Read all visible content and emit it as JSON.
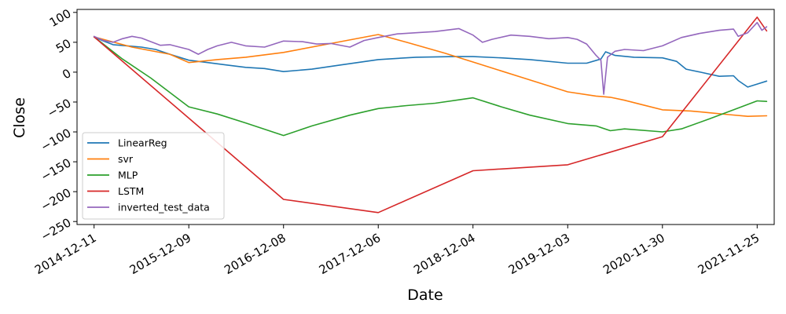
{
  "chart_data": {
    "type": "line",
    "title": "",
    "xlabel": "Date",
    "ylabel": "Close",
    "x_ticks": [
      "2014-12-11",
      "2015-12-09",
      "2016-12-08",
      "2017-12-06",
      "2018-12-04",
      "2019-12-03",
      "2020-11-30",
      "2021-11-25"
    ],
    "y_ticks": [
      100,
      50,
      0,
      -50,
      -100,
      -150,
      -200,
      -250
    ],
    "xlim": [
      -0.18,
      7.18
    ],
    "ylim": [
      -255,
      105
    ],
    "grid": false,
    "legend_position": "lower left",
    "series": [
      {
        "name": "LinearReg",
        "color": "#1f77b4",
        "points": [
          [
            0,
            59
          ],
          [
            0.1,
            52
          ],
          [
            0.2,
            46
          ],
          [
            0.35,
            44
          ],
          [
            0.5,
            42
          ],
          [
            0.65,
            38
          ],
          [
            0.8,
            30
          ],
          [
            1.0,
            20
          ],
          [
            1.2,
            16
          ],
          [
            1.4,
            12
          ],
          [
            1.6,
            8
          ],
          [
            1.8,
            6
          ],
          [
            2.0,
            1
          ],
          [
            2.3,
            5
          ],
          [
            2.6,
            12
          ],
          [
            3.0,
            21
          ],
          [
            3.4,
            25
          ],
          [
            3.8,
            26
          ],
          [
            4.0,
            26
          ],
          [
            4.3,
            24
          ],
          [
            4.6,
            21
          ],
          [
            5.0,
            15
          ],
          [
            5.2,
            15
          ],
          [
            5.35,
            22
          ],
          [
            5.4,
            34
          ],
          [
            5.5,
            28
          ],
          [
            5.7,
            25
          ],
          [
            6.0,
            24
          ],
          [
            6.15,
            18
          ],
          [
            6.25,
            5
          ],
          [
            6.4,
            0
          ],
          [
            6.6,
            -7
          ],
          [
            6.75,
            -6
          ],
          [
            6.8,
            -14
          ],
          [
            6.9,
            -25
          ],
          [
            7.0,
            -20
          ],
          [
            7.1,
            -15
          ]
        ]
      },
      {
        "name": "svr",
        "color": "#ff7f0e",
        "points": [
          [
            0,
            59
          ],
          [
            0.4,
            42
          ],
          [
            0.8,
            30
          ],
          [
            1.0,
            16
          ],
          [
            1.3,
            21
          ],
          [
            1.6,
            25
          ],
          [
            2.0,
            33
          ],
          [
            2.5,
            48
          ],
          [
            3.0,
            63
          ],
          [
            3.3,
            50
          ],
          [
            3.7,
            32
          ],
          [
            4.0,
            17
          ],
          [
            4.5,
            -8
          ],
          [
            5.0,
            -33
          ],
          [
            5.3,
            -40
          ],
          [
            5.45,
            -42
          ],
          [
            5.6,
            -47
          ],
          [
            5.8,
            -55
          ],
          [
            6.0,
            -63
          ],
          [
            6.3,
            -65
          ],
          [
            6.5,
            -68
          ],
          [
            6.7,
            -71
          ],
          [
            6.9,
            -74
          ],
          [
            7.1,
            -73
          ]
        ]
      },
      {
        "name": "MLP",
        "color": "#2ca02c",
        "points": [
          [
            0,
            59
          ],
          [
            0.3,
            22
          ],
          [
            0.6,
            -10
          ],
          [
            0.85,
            -40
          ],
          [
            1.0,
            -58
          ],
          [
            1.3,
            -70
          ],
          [
            1.6,
            -85
          ],
          [
            2.0,
            -106
          ],
          [
            2.3,
            -90
          ],
          [
            2.7,
            -72
          ],
          [
            3.0,
            -61
          ],
          [
            3.3,
            -56
          ],
          [
            3.6,
            -52
          ],
          [
            4.0,
            -43
          ],
          [
            4.3,
            -58
          ],
          [
            4.6,
            -72
          ],
          [
            5.0,
            -86
          ],
          [
            5.3,
            -90
          ],
          [
            5.45,
            -98
          ],
          [
            5.6,
            -95
          ],
          [
            6.0,
            -100
          ],
          [
            6.2,
            -95
          ],
          [
            6.5,
            -78
          ],
          [
            6.8,
            -60
          ],
          [
            7.0,
            -48
          ],
          [
            7.1,
            -49
          ]
        ]
      },
      {
        "name": "LSTM",
        "color": "#d62728",
        "points": [
          [
            0,
            59
          ],
          [
            2.0,
            -213
          ],
          [
            3.0,
            -235
          ],
          [
            4.0,
            -165
          ],
          [
            5.0,
            -155
          ],
          [
            6.0,
            -108
          ],
          [
            7.0,
            92
          ],
          [
            7.1,
            69
          ]
        ]
      },
      {
        "name": "inverted_test_data",
        "color": "#9467bd",
        "points": [
          [
            0,
            60
          ],
          [
            0.1,
            53
          ],
          [
            0.2,
            50
          ],
          [
            0.3,
            56
          ],
          [
            0.4,
            60
          ],
          [
            0.5,
            57
          ],
          [
            0.6,
            51
          ],
          [
            0.7,
            45
          ],
          [
            0.8,
            46
          ],
          [
            0.9,
            42
          ],
          [
            1.0,
            38
          ],
          [
            1.1,
            30
          ],
          [
            1.2,
            38
          ],
          [
            1.3,
            44
          ],
          [
            1.45,
            50
          ],
          [
            1.6,
            44
          ],
          [
            1.8,
            42
          ],
          [
            2.0,
            52
          ],
          [
            2.2,
            51
          ],
          [
            2.35,
            47
          ],
          [
            2.5,
            48
          ],
          [
            2.7,
            42
          ],
          [
            2.85,
            53
          ],
          [
            3.0,
            58
          ],
          [
            3.2,
            64
          ],
          [
            3.4,
            66
          ],
          [
            3.6,
            68
          ],
          [
            3.85,
            73
          ],
          [
            4.0,
            62
          ],
          [
            4.1,
            50
          ],
          [
            4.2,
            55
          ],
          [
            4.4,
            62
          ],
          [
            4.6,
            60
          ],
          [
            4.8,
            56
          ],
          [
            5.0,
            58
          ],
          [
            5.1,
            55
          ],
          [
            5.2,
            47
          ],
          [
            5.3,
            28
          ],
          [
            5.35,
            20
          ],
          [
            5.38,
            -37
          ],
          [
            5.42,
            25
          ],
          [
            5.5,
            35
          ],
          [
            5.6,
            38
          ],
          [
            5.8,
            36
          ],
          [
            6.0,
            44
          ],
          [
            6.2,
            58
          ],
          [
            6.4,
            65
          ],
          [
            6.6,
            70
          ],
          [
            6.75,
            72
          ],
          [
            6.8,
            60
          ],
          [
            6.9,
            66
          ],
          [
            7.0,
            83
          ],
          [
            7.05,
            70
          ],
          [
            7.1,
            76
          ]
        ]
      }
    ]
  }
}
